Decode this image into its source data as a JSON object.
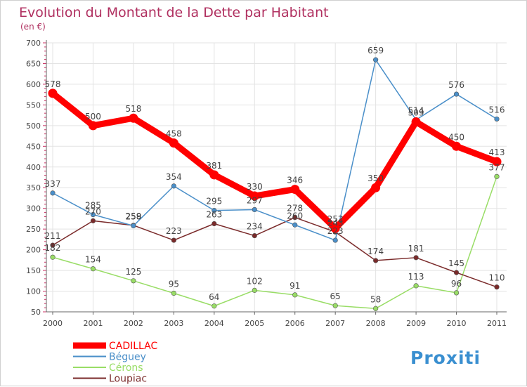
{
  "header": {
    "title": "Evolution du Montant de la Dette par Habitant",
    "unit": "(en €)"
  },
  "logo": {
    "text": "Proxiti"
  },
  "colors": {
    "title": "#b03060",
    "axis": "#555555",
    "grid": "#e3e3e3",
    "accent_tick": "#cc3366"
  },
  "chart_data": {
    "type": "line",
    "title": "Evolution du Montant de la Dette par Habitant",
    "ylabel": "(en €)",
    "xlabel": "",
    "x": [
      "2000",
      "2001",
      "2002",
      "2003",
      "2004",
      "2005",
      "2006",
      "2007",
      "2008",
      "2009",
      "2010",
      "2011"
    ],
    "ylim": [
      50,
      700
    ],
    "yticks": [
      50,
      100,
      150,
      200,
      250,
      300,
      350,
      400,
      450,
      500,
      550,
      600,
      650,
      700
    ],
    "grid": true,
    "legend_position": "bottom-left",
    "series": [
      {
        "name": "CADILLAC",
        "color": "#ff0000",
        "values": [
          578,
          500,
          518,
          458,
          381,
          330,
          346,
          252,
          350,
          509,
          450,
          413
        ]
      },
      {
        "name": "Béguey",
        "color": "#4a8fc9",
        "values": [
          337,
          285,
          258,
          354,
          295,
          297,
          260,
          223,
          659,
          514,
          576,
          516
        ]
      },
      {
        "name": "Cérons",
        "color": "#99dd66",
        "values": [
          182,
          154,
          125,
          95,
          64,
          102,
          91,
          65,
          58,
          113,
          96,
          377
        ]
      },
      {
        "name": "Loupiac",
        "color": "#7a2a2a",
        "values": [
          211,
          270,
          259,
          223,
          263,
          234,
          278,
          243,
          174,
          181,
          145,
          110
        ]
      }
    ]
  }
}
